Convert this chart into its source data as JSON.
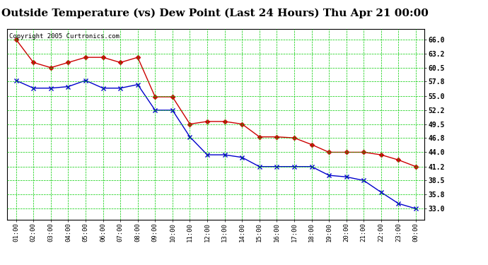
{
  "title": "Outside Temperature (vs) Dew Point (Last 24 Hours) Thu Apr 21 00:00",
  "copyright": "Copyright 2005 Curtronics.com",
  "x_labels": [
    "01:00",
    "02:00",
    "03:00",
    "04:00",
    "05:00",
    "06:00",
    "07:00",
    "08:00",
    "09:00",
    "10:00",
    "11:00",
    "12:00",
    "13:00",
    "14:00",
    "15:00",
    "16:00",
    "17:00",
    "18:00",
    "19:00",
    "20:00",
    "21:00",
    "22:00",
    "23:00",
    "00:00"
  ],
  "temp_red": [
    66.0,
    61.5,
    60.5,
    61.5,
    62.5,
    62.5,
    61.5,
    62.5,
    54.8,
    54.8,
    49.5,
    50.0,
    50.0,
    49.5,
    47.0,
    47.0,
    46.8,
    45.5,
    44.0,
    44.0,
    44.0,
    43.5,
    42.5,
    41.2
  ],
  "dew_blue": [
    58.0,
    56.5,
    56.5,
    56.8,
    58.0,
    56.5,
    56.5,
    57.2,
    52.2,
    52.2,
    47.0,
    43.5,
    43.5,
    43.0,
    41.2,
    41.2,
    41.2,
    41.2,
    39.5,
    39.2,
    38.5,
    36.2,
    34.0,
    33.0
  ],
  "ylim_min": 30.8,
  "ylim_max": 68.0,
  "yticks": [
    33.0,
    35.8,
    38.5,
    41.2,
    44.0,
    46.8,
    49.5,
    52.2,
    55.0,
    57.8,
    60.5,
    63.2,
    66.0
  ],
  "bg_color": "#ffffff",
  "grid_color": "#00cc00",
  "red_color": "#cc0000",
  "blue_color": "#0000cc",
  "title_fontsize": 11,
  "copyright_fontsize": 6.5
}
